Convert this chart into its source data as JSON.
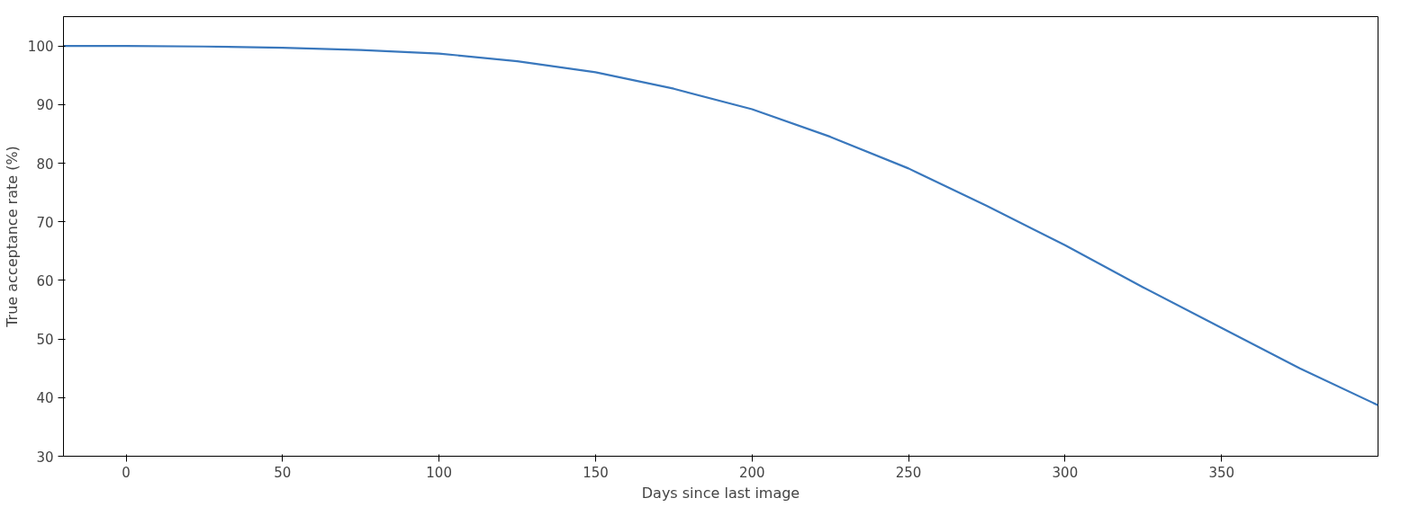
{
  "chart_data": {
    "type": "line",
    "xlabel": "Days since last image",
    "ylabel": "True acceptance rate (%)",
    "x": [
      -20,
      0,
      25,
      50,
      75,
      100,
      125,
      150,
      175,
      200,
      225,
      250,
      275,
      300,
      325,
      350,
      375,
      400
    ],
    "series": [
      {
        "color": "#3a78bd",
        "values": [
          100,
          100,
          99.9,
          99.7,
          99.3,
          98.7,
          97.4,
          95.5,
          92.7,
          89.2,
          84.5,
          79.1,
          72.7,
          66,
          58.8,
          51.9,
          45,
          38.7
        ]
      }
    ],
    "xlim": [
      -20,
      400
    ],
    "ylim": [
      30,
      105
    ],
    "xticks": [
      0,
      50,
      100,
      150,
      200,
      250,
      300,
      350
    ],
    "yticks": [
      30,
      40,
      50,
      60,
      70,
      80,
      90,
      100
    ],
    "grid": false,
    "marker": "none",
    "line_style": "solid"
  }
}
